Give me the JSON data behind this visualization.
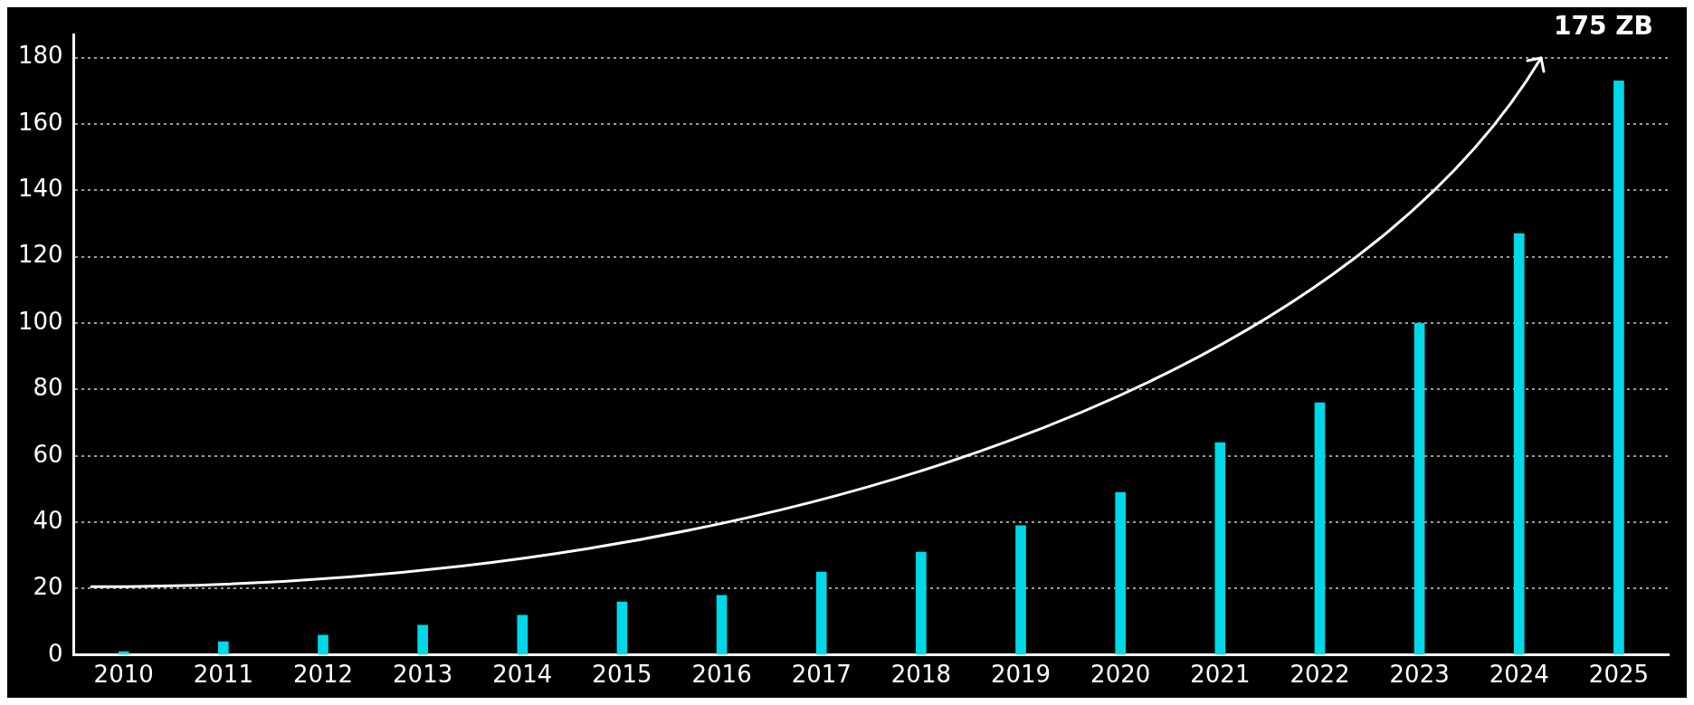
{
  "chart_data": {
    "type": "bar",
    "categories": [
      "2010",
      "2011",
      "2012",
      "2013",
      "2014",
      "2015",
      "2016",
      "2017",
      "2018",
      "2019",
      "2020",
      "2021",
      "2022",
      "2023",
      "2024",
      "2025"
    ],
    "values": [
      1,
      4,
      6,
      9,
      12,
      16,
      18,
      25,
      31,
      39,
      49,
      64,
      76,
      100,
      127,
      173
    ],
    "color": "#00d8e8",
    "ylim": [
      0,
      187
    ],
    "yticks": [
      0,
      20,
      40,
      60,
      80,
      100,
      120,
      140,
      160,
      180
    ],
    "grid": "y",
    "legend": false,
    "annotations": [
      "175 ZB"
    ]
  }
}
